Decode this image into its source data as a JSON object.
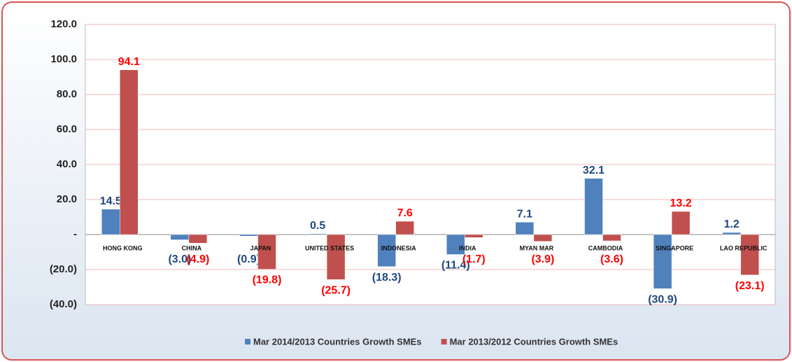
{
  "chart_data": {
    "type": "bar",
    "categories": [
      "HONG KONG",
      "CHINA",
      "JAPAN",
      "UNITED STATES",
      "INDONESIA",
      "INDIA",
      "MYAN MAR",
      "CAMBODIA",
      "SINGAPORE",
      "LAO REPUBLIC"
    ],
    "series": [
      {
        "name": "Mar 2014/2013 Countries Growth SMEs",
        "color": "#4f81bd",
        "label_color": "#1f497d",
        "values": [
          14.5,
          -3.0,
          -0.9,
          0.5,
          -18.3,
          -11.4,
          7.1,
          32.1,
          -30.9,
          1.2
        ],
        "value_labels": [
          "14.5",
          "(3.0)",
          "(0.9)",
          "0.5",
          "(18.3)",
          "(11.4)",
          "7.1",
          "32.1",
          "(30.9)",
          "1.2"
        ]
      },
      {
        "name": "Mar 2013/2012 Countries Growth SMEs",
        "color": "#c0504d",
        "label_color": "#ff0000",
        "values": [
          94.1,
          -4.9,
          -19.8,
          -25.7,
          7.6,
          -1.7,
          -3.9,
          -3.6,
          13.2,
          -23.1
        ],
        "value_labels": [
          "94.1",
          "(4.9)",
          "(19.8)",
          "(25.7)",
          "7.6",
          "(1.7)",
          "(3.9)",
          "(3.6)",
          "13.2",
          "(23.1)"
        ]
      }
    ],
    "ylim": [
      -40,
      120
    ],
    "yticks": [
      {
        "value": -40,
        "label": "(40.0)"
      },
      {
        "value": -20,
        "label": "(20.0)"
      },
      {
        "value": 0,
        "label": "-"
      },
      {
        "value": 20,
        "label": "20.0"
      },
      {
        "value": 40,
        "label": "40.0"
      },
      {
        "value": 60,
        "label": "60.0"
      },
      {
        "value": 80,
        "label": "80.0"
      },
      {
        "value": 100,
        "label": "100.0"
      },
      {
        "value": 120,
        "label": "120.0"
      }
    ],
    "grid": true,
    "legend": "bottom"
  }
}
